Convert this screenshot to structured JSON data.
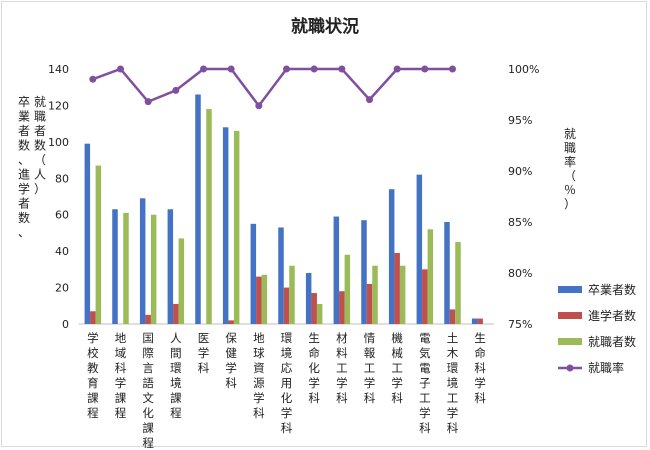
{
  "chart_data": {
    "type": "bar",
    "title": "就職状況",
    "ylabel_left": "卒業者数、進学者数、就職者数（人）",
    "ylabel_right": "就職率（％）",
    "categories": [
      "学校教育課程",
      "地域科学課程",
      "国際言語文化課程",
      "人間環境課程",
      "医学科",
      "保健学科",
      "地球資源学科",
      "環境応用化学科",
      "生命化学科",
      "材料工学科",
      "情報工学科",
      "機械工学科",
      "電気電子工学科",
      "土木環境工学科",
      "生命科学科"
    ],
    "series": [
      {
        "name": "卒業者数",
        "color": "#4472c4",
        "values": [
          99,
          63,
          69,
          63,
          126,
          108,
          55,
          53,
          28,
          59,
          57,
          74,
          82,
          56,
          3
        ]
      },
      {
        "name": "進学者数",
        "color": "#c0504d",
        "values": [
          7,
          0,
          5,
          11,
          0,
          2,
          26,
          20,
          17,
          18,
          22,
          39,
          30,
          8,
          3
        ]
      },
      {
        "name": "就職者数",
        "color": "#9bbb59",
        "values": [
          87,
          61,
          60,
          47,
          118,
          106,
          27,
          32,
          11,
          38,
          32,
          32,
          52,
          45,
          0
        ]
      }
    ],
    "line_series": {
      "name": "就職率",
      "color": "#7f4fa0",
      "values": [
        99.0,
        100,
        96.8,
        97.9,
        100,
        100,
        96.4,
        100,
        100,
        100,
        97.0,
        100,
        100,
        100,
        null
      ]
    },
    "ylim_left": [
      0,
      140
    ],
    "yticks_left": [
      "0",
      "20",
      "40",
      "60",
      "80",
      "100",
      "120",
      "140"
    ],
    "ylim_right": [
      75,
      100
    ],
    "yticks_right": [
      "75%",
      "80%",
      "85%",
      "90%",
      "95%",
      "100%"
    ],
    "legend_position": "right"
  }
}
